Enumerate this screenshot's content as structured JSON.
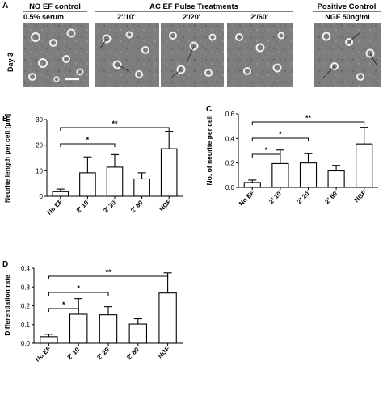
{
  "figure": {
    "panel_labels": [
      "A",
      "B",
      "C",
      "D"
    ],
    "panel_a": {
      "row_label": "Day 3",
      "groups": [
        {
          "header": "NO EF control",
          "sublabels": [
            "0.5% serum"
          ]
        },
        {
          "header": "AC EF Pulse Treatments",
          "sublabels": [
            "2'/10'",
            "2'/20'",
            "2'/60'"
          ]
        },
        {
          "header": "Positive Control",
          "sublabels": [
            "NGF 50ng/ml"
          ]
        }
      ]
    }
  },
  "chart_data": [
    {
      "panel": "B",
      "type": "bar",
      "categories": [
        "No EF",
        "2' 10'",
        "2' 20'",
        "2' 60'",
        "NGF"
      ],
      "values": [
        1.8,
        9.2,
        11.4,
        6.8,
        18.6
      ],
      "errors": [
        1.0,
        6.2,
        4.9,
        2.4,
        6.8
      ],
      "ylabel": "Neurite length per cell [μm]",
      "xlabel": "",
      "ylim": [
        0,
        30
      ],
      "yticks": [
        "0",
        "10",
        "20",
        "30"
      ],
      "significance": [
        {
          "from": "No EF",
          "to": "2' 20'",
          "label": "*"
        },
        {
          "from": "No EF",
          "to": "NGF",
          "label": "**"
        }
      ]
    },
    {
      "panel": "C",
      "type": "bar",
      "categories": [
        "No EF",
        "2' 10'",
        "2' 20'",
        "2' 60'",
        "NGF"
      ],
      "values": [
        0.04,
        0.195,
        0.2,
        0.135,
        0.355
      ],
      "errors": [
        0.02,
        0.11,
        0.075,
        0.045,
        0.135
      ],
      "ylabel": "No. of neurite per cell",
      "xlabel": "",
      "ylim": [
        0,
        0.6
      ],
      "yticks": [
        "0.0",
        "0.2",
        "0.4",
        "0.6"
      ],
      "significance": [
        {
          "from": "No EF",
          "to": "2' 10'",
          "label": "*"
        },
        {
          "from": "No EF",
          "to": "2' 20'",
          "label": "*"
        },
        {
          "from": "No EF",
          "to": "NGF",
          "label": "**"
        }
      ]
    },
    {
      "panel": "D",
      "type": "bar",
      "categories": [
        "No EF",
        "2' 10'",
        "2' 20'",
        "2' 60'",
        "NGF"
      ],
      "values": [
        0.035,
        0.155,
        0.152,
        0.103,
        0.268
      ],
      "errors": [
        0.013,
        0.083,
        0.043,
        0.028,
        0.107
      ],
      "ylabel": "Differentiation rate",
      "xlabel": "",
      "ylim": [
        0,
        0.4
      ],
      "yticks": [
        "0.0",
        "0.1",
        "0.2",
        "0.3",
        "0.4"
      ],
      "significance": [
        {
          "from": "No EF",
          "to": "2' 10'",
          "label": "*"
        },
        {
          "from": "No EF",
          "to": "2' 20'",
          "label": "*"
        },
        {
          "from": "No EF",
          "to": "NGF",
          "label": "**"
        }
      ]
    }
  ]
}
